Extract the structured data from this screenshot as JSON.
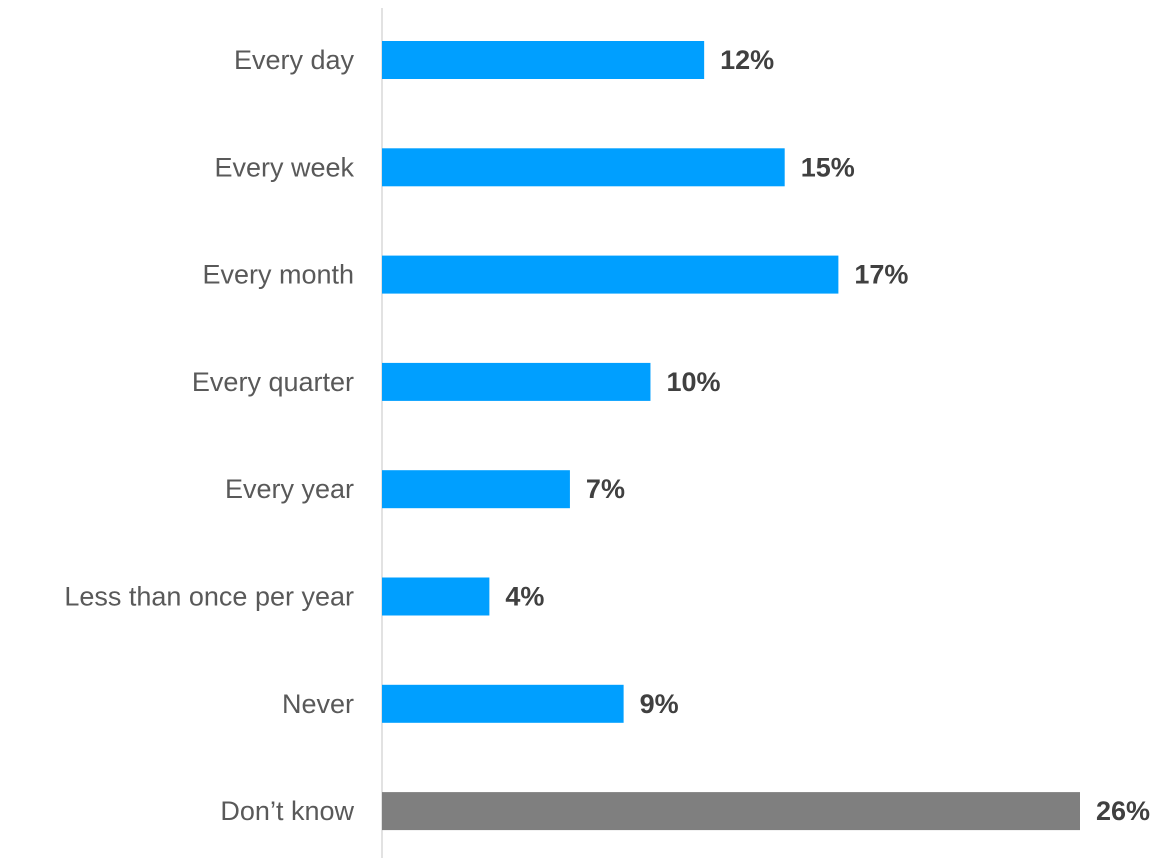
{
  "chart_data": {
    "type": "bar",
    "orientation": "horizontal",
    "categories": [
      "Every day",
      "Every week",
      "Every month",
      "Every quarter",
      "Every year",
      "Less than once per year",
      "Never",
      "Don’t know"
    ],
    "values": [
      12,
      15,
      17,
      10,
      7,
      4,
      9,
      26
    ],
    "value_labels": [
      "12%",
      "15%",
      "17%",
      "10%",
      "7%",
      "4%",
      "9%",
      "26%"
    ],
    "unit": "%",
    "title": "",
    "xlabel": "",
    "ylabel": "",
    "xlim": [
      0,
      26
    ],
    "grid": false,
    "legend": "none",
    "colors": {
      "default": "#009FFF",
      "Don’t know": "#7F7F7F",
      "axis": "#D9D9D9"
    }
  }
}
